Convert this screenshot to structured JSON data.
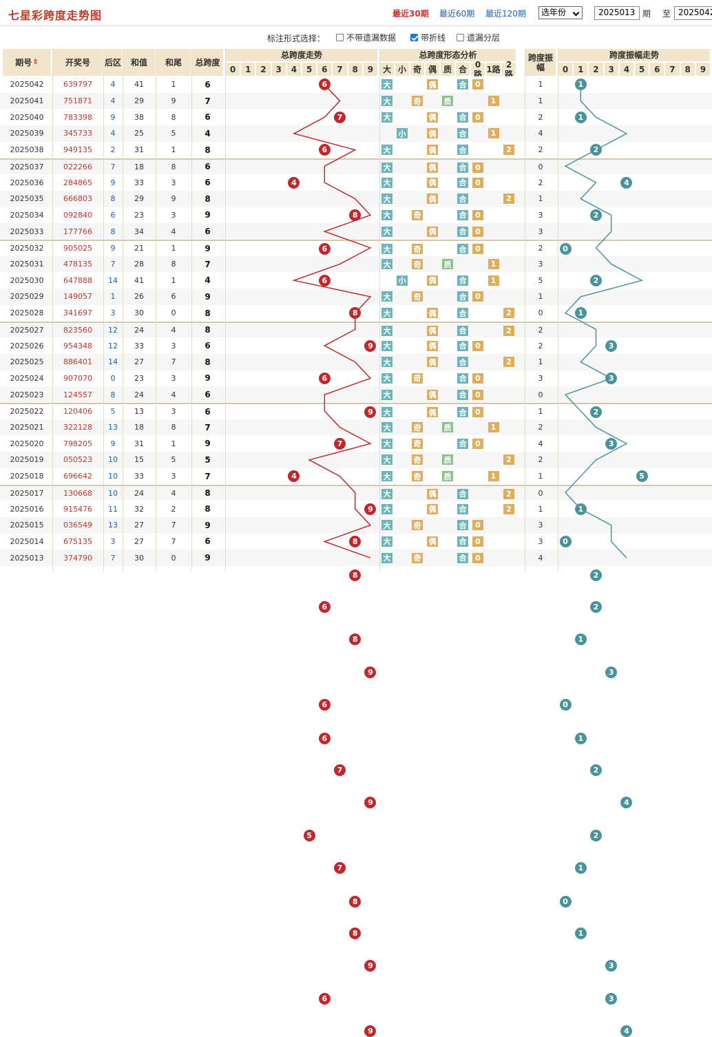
{
  "title": "七星彩跨度走势图",
  "range_links": [
    "最近30期",
    "最近60期",
    "最近120期"
  ],
  "year_select": "选年份",
  "from_issue": "2025013",
  "label_issue": "期",
  "label_to": "至",
  "to_issue": "2025042",
  "option_label": "标注形式选择：",
  "options": [
    {
      "label": "不带遗漏数据",
      "checked": false
    },
    {
      "label": "带折线",
      "checked": true
    },
    {
      "label": "遗漏分层",
      "checked": false
    }
  ],
  "headers": {
    "issue": "期号",
    "draw": "开奖号",
    "back": "后区",
    "sum": "和值",
    "tail": "和尾",
    "span": "总跨度",
    "trend": "总跨度走势",
    "shape": "总跨度形态分析",
    "amp": "跨度振幅",
    "amp_trend": "跨度振幅走势",
    "digits": [
      "0",
      "1",
      "2",
      "3",
      "4",
      "5",
      "6",
      "7",
      "8",
      "9"
    ],
    "shape_cols": [
      "大",
      "小",
      "奇",
      "偶",
      "质",
      "合",
      "0路",
      "1路",
      "2路"
    ],
    "amp_digits": [
      "0",
      "1",
      "2",
      "3",
      "4",
      "5",
      "6",
      "7",
      "8",
      "9"
    ]
  },
  "rows": [
    {
      "issue": "2025042",
      "draw": "639797",
      "back": "4",
      "sum": "41",
      "tail": "1",
      "span": "6",
      "amp": "1"
    },
    {
      "issue": "2025041",
      "draw": "751871",
      "back": "4",
      "sum": "29",
      "tail": "9",
      "span": "7",
      "amp": "1"
    },
    {
      "issue": "2025040",
      "draw": "783398",
      "back": "9",
      "sum": "38",
      "tail": "8",
      "span": "6",
      "amp": "2"
    },
    {
      "issue": "2025039",
      "draw": "345733",
      "back": "4",
      "sum": "25",
      "tail": "5",
      "span": "4",
      "amp": "4"
    },
    {
      "issue": "2025038",
      "draw": "949135",
      "back": "2",
      "sum": "31",
      "tail": "1",
      "span": "8",
      "amp": "2"
    },
    {
      "issue": "2025037",
      "draw": "022266",
      "back": "7",
      "sum": "18",
      "tail": "8",
      "span": "6",
      "amp": "0"
    },
    {
      "issue": "2025036",
      "draw": "284865",
      "back": "9",
      "sum": "33",
      "tail": "3",
      "span": "6",
      "amp": "2"
    },
    {
      "issue": "2025035",
      "draw": "666803",
      "back": "8",
      "sum": "29",
      "tail": "9",
      "span": "8",
      "amp": "1"
    },
    {
      "issue": "2025034",
      "draw": "092840",
      "back": "6",
      "sum": "23",
      "tail": "3",
      "span": "9",
      "amp": "3"
    },
    {
      "issue": "2025033",
      "draw": "177766",
      "back": "8",
      "sum": "34",
      "tail": "4",
      "span": "6",
      "amp": "3"
    },
    {
      "issue": "2025032",
      "draw": "905025",
      "back": "9",
      "sum": "21",
      "tail": "1",
      "span": "9",
      "amp": "2"
    },
    {
      "issue": "2025031",
      "draw": "478135",
      "back": "7",
      "sum": "28",
      "tail": "8",
      "span": "7",
      "amp": "3"
    },
    {
      "issue": "2025030",
      "draw": "647888",
      "back": "14",
      "sum": "41",
      "tail": "1",
      "span": "4",
      "amp": "5"
    },
    {
      "issue": "2025029",
      "draw": "149057",
      "back": "1",
      "sum": "26",
      "tail": "6",
      "span": "9",
      "amp": "1"
    },
    {
      "issue": "2025028",
      "draw": "341697",
      "back": "3",
      "sum": "30",
      "tail": "0",
      "span": "8",
      "amp": "0"
    },
    {
      "issue": "2025027",
      "draw": "823560",
      "back": "12",
      "sum": "24",
      "tail": "4",
      "span": "8",
      "amp": "2"
    },
    {
      "issue": "2025026",
      "draw": "954348",
      "back": "12",
      "sum": "33",
      "tail": "3",
      "span": "6",
      "amp": "2"
    },
    {
      "issue": "2025025",
      "draw": "886401",
      "back": "14",
      "sum": "27",
      "tail": "7",
      "span": "8",
      "amp": "1"
    },
    {
      "issue": "2025024",
      "draw": "907070",
      "back": "0",
      "sum": "23",
      "tail": "3",
      "span": "9",
      "amp": "3"
    },
    {
      "issue": "2025023",
      "draw": "124557",
      "back": "8",
      "sum": "24",
      "tail": "4",
      "span": "6",
      "amp": "0"
    },
    {
      "issue": "2025022",
      "draw": "120406",
      "back": "5",
      "sum": "13",
      "tail": "3",
      "span": "6",
      "amp": "1"
    },
    {
      "issue": "2025021",
      "draw": "322128",
      "back": "13",
      "sum": "18",
      "tail": "8",
      "span": "7",
      "amp": "2"
    },
    {
      "issue": "2025020",
      "draw": "798205",
      "back": "9",
      "sum": "31",
      "tail": "1",
      "span": "9",
      "amp": "4"
    },
    {
      "issue": "2025019",
      "draw": "050523",
      "back": "10",
      "sum": "15",
      "tail": "5",
      "span": "5",
      "amp": "2"
    },
    {
      "issue": "2025018",
      "draw": "696642",
      "back": "10",
      "sum": "33",
      "tail": "3",
      "span": "7",
      "amp": "1"
    },
    {
      "issue": "2025017",
      "draw": "130668",
      "back": "10",
      "sum": "24",
      "tail": "4",
      "span": "8",
      "amp": "0"
    },
    {
      "issue": "2025016",
      "draw": "915476",
      "back": "11",
      "sum": "32",
      "tail": "2",
      "span": "8",
      "amp": "1"
    },
    {
      "issue": "2025015",
      "draw": "036549",
      "back": "13",
      "sum": "27",
      "tail": "7",
      "span": "9",
      "amp": "3"
    },
    {
      "issue": "2025014",
      "draw": "675135",
      "back": "3",
      "sum": "27",
      "tail": "7",
      "span": "6",
      "amp": "3"
    },
    {
      "issue": "2025013",
      "draw": "374790",
      "back": "7",
      "sum": "30",
      "tail": "0",
      "span": "9",
      "amp": "4"
    }
  ],
  "colors": {
    "red_ball": "#c0282d",
    "teal_ball": "#4a9499",
    "header_bg": "#f1e6cc",
    "accent": "#c0392b",
    "link": "#1a5fb4"
  }
}
